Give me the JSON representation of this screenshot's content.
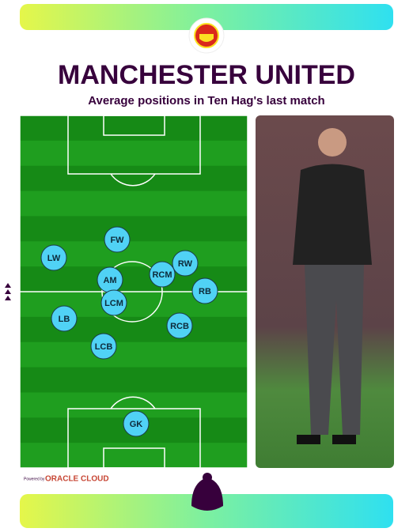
{
  "header": {
    "title": "MANCHESTER UNITED",
    "subtitle": "Average positions in Ten Hag's last match"
  },
  "players": [
    {
      "label": "FW"
    },
    {
      "label": "LW"
    },
    {
      "label": "RW"
    },
    {
      "label": "RCM"
    },
    {
      "label": "AM"
    },
    {
      "label": "RB"
    },
    {
      "label": "LCM"
    },
    {
      "label": "LB"
    },
    {
      "label": "RCB"
    },
    {
      "label": "LCB"
    },
    {
      "label": "GK"
    }
  ],
  "footer": {
    "powered_by": "Powered by",
    "sponsor": "ORACLE CLOUD"
  }
}
